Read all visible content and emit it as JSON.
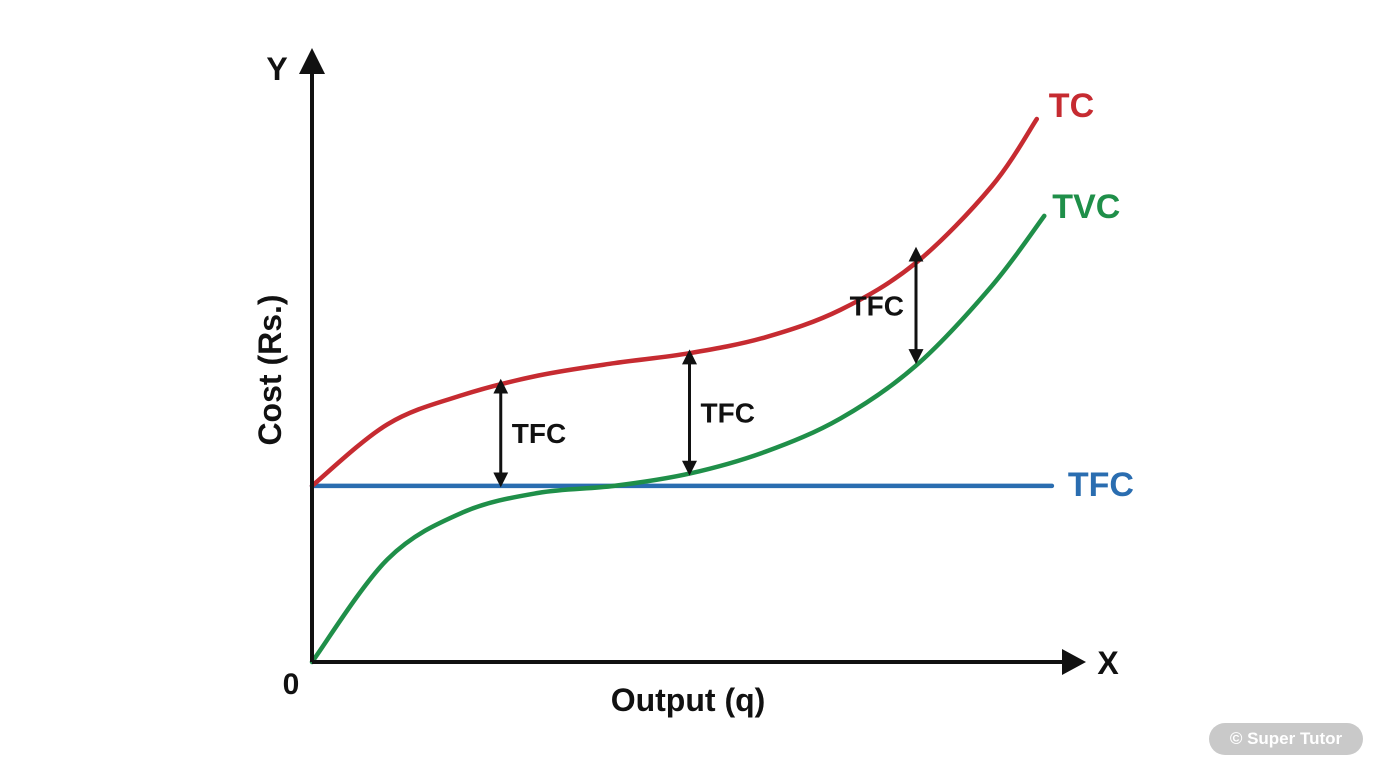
{
  "chart_data": {
    "type": "line",
    "title": "",
    "xlabel": "Output (q)",
    "ylabel": "Cost (Rs.)",
    "x_axis_letter": "X",
    "y_axis_letter": "Y",
    "origin_label": "0",
    "xlim": [
      0,
      10
    ],
    "ylim": [
      0,
      10
    ],
    "grid": false,
    "legend": "inline labels at right end of curves",
    "fixed_cost": 3,
    "series": [
      {
        "name": "TC",
        "color": "#c62b31",
        "x": [
          0,
          1,
          2,
          3,
          4,
          5,
          6,
          7,
          8,
          9,
          9.6
        ],
        "y": [
          3,
          4.05,
          4.55,
          4.88,
          5.09,
          5.26,
          5.53,
          6.0,
          6.8,
          8.1,
          9.25
        ]
      },
      {
        "name": "TVC",
        "color": "#1f8f49",
        "x": [
          0,
          1,
          2,
          3,
          4,
          5,
          6,
          7,
          8,
          9,
          9.7
        ],
        "y": [
          0,
          1.75,
          2.55,
          2.88,
          3.0,
          3.21,
          3.58,
          4.15,
          5.05,
          6.4,
          7.6
        ]
      },
      {
        "name": "TFC",
        "color": "#2a6db0",
        "x": [
          0,
          9.8
        ],
        "y": [
          3,
          3
        ]
      }
    ],
    "annotations": [
      {
        "label": "TFC",
        "x": 2.5,
        "y_from": 3.0,
        "y_to": 4.8
      },
      {
        "label": "TFC",
        "x": 5.0,
        "y_from": 3.2,
        "y_to": 5.3
      },
      {
        "label": "TFC",
        "x": 8.0,
        "y_from": 5.1,
        "y_to": 7.05
      }
    ]
  },
  "watermark": "© Super Tutor"
}
